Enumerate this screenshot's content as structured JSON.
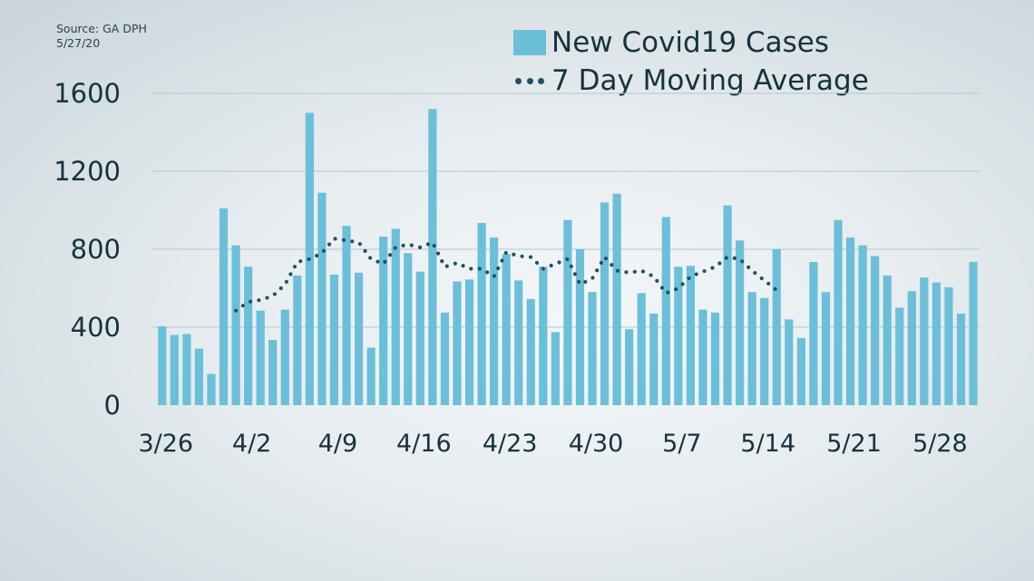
{
  "source": {
    "line1": "Source: GA DPH",
    "line2": "5/27/20"
  },
  "legend": {
    "bars_label": "New Covid19 Cases",
    "line_label": "7 Day Moving Average"
  },
  "colors": {
    "bar": "#6cbfd8",
    "line": "#1e5163",
    "grid": "#b7c6cd",
    "text": "#16323f"
  },
  "chart_data": {
    "type": "bar",
    "title": "",
    "xlabel": "",
    "ylabel": "",
    "ylim": [
      0,
      1600
    ],
    "yticks": [
      0,
      400,
      800,
      1200,
      1600
    ],
    "x_tick_labels": [
      {
        "label": "3/26",
        "day": 0
      },
      {
        "label": "4/2",
        "day": 7
      },
      {
        "label": "4/9",
        "day": 14
      },
      {
        "label": "4/16",
        "day": 21
      },
      {
        "label": "4/23",
        "day": 28
      },
      {
        "label": "4/30",
        "day": 35
      },
      {
        "label": "5/7",
        "day": 42
      },
      {
        "label": "5/14",
        "day": 49
      },
      {
        "label": "5/21",
        "day": 56
      },
      {
        "label": "5/28",
        "day": 63
      }
    ],
    "grid": "horizontal",
    "legend_position": "top-right",
    "series": [
      {
        "name": "New Covid19 Cases",
        "type": "bar",
        "values": [
          405,
          360,
          365,
          290,
          160,
          1010,
          820,
          710,
          485,
          335,
          490,
          665,
          1500,
          1090,
          670,
          920,
          680,
          295,
          865,
          905,
          780,
          685,
          1520,
          475,
          635,
          645,
          935,
          860,
          775,
          640,
          545,
          710,
          375,
          950,
          800,
          580,
          1040,
          1085,
          390,
          575,
          470,
          965,
          710,
          715,
          490,
          475,
          1025,
          845,
          580,
          550,
          800,
          440,
          345,
          735,
          580,
          950,
          860,
          820,
          765,
          665,
          500,
          585,
          655,
          630,
          605,
          470,
          735
        ]
      },
      {
        "name": "7 Day Moving Average",
        "type": "line",
        "start_index": 6,
        "values": [
          485,
          530,
          540,
          560,
          620,
          735,
          750,
          780,
          855,
          845,
          835,
          750,
          725,
          810,
          825,
          810,
          835,
          710,
          730,
          700,
          700,
          660,
          785,
          765,
          760,
          700,
          725,
          750,
          620,
          650,
          760,
          690,
          680,
          690,
          660,
          575,
          600,
          660,
          685,
          710,
          760,
          750,
          690,
          640,
          590
        ]
      }
    ]
  }
}
